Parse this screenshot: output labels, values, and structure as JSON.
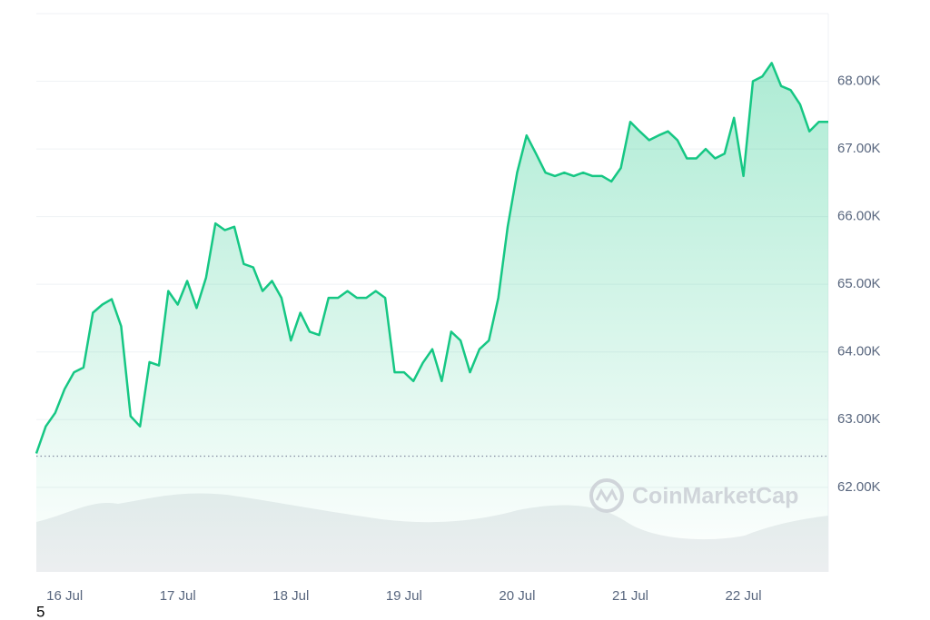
{
  "chart_data": {
    "type": "line",
    "categories": [
      null,
      null,
      null,
      "16 Jul",
      null,
      null,
      null,
      null,
      null,
      null,
      null,
      null,
      null,
      null,
      null,
      "17 Jul",
      null,
      null,
      null,
      null,
      null,
      null,
      null,
      null,
      null,
      null,
      null,
      "18 Jul",
      null,
      null,
      null,
      null,
      null,
      null,
      null,
      null,
      null,
      null,
      null,
      "19 Jul",
      null,
      null,
      null,
      null,
      null,
      null,
      null,
      null,
      null,
      null,
      null,
      "20 Jul",
      null,
      null,
      null,
      null,
      null,
      null,
      null,
      null,
      null,
      null,
      null,
      "21 Jul",
      null,
      null,
      null,
      null,
      null,
      null,
      null,
      null,
      null,
      null,
      null,
      "22 Jul",
      null,
      null,
      null,
      null,
      null,
      null,
      null,
      null,
      null
    ],
    "series": [
      {
        "color": "#16c784",
        "values": [
          62500,
          62900,
          63100,
          63450,
          63700,
          63770,
          64580,
          64700,
          64780,
          64380,
          63050,
          62900,
          63850,
          63800,
          64900,
          64700,
          65050,
          64650,
          65100,
          65900,
          65800,
          65850,
          65300,
          65250,
          64900,
          65050,
          64800,
          64170,
          64580,
          64300,
          64250,
          64800,
          64800,
          64900,
          64800,
          64800,
          64900,
          64800,
          63700,
          63700,
          63570,
          63840,
          64040,
          63570,
          64300,
          64170,
          63700,
          64040,
          64170,
          64800,
          65850,
          66650,
          67200,
          66930,
          66650,
          66600,
          66650,
          66600,
          66650,
          66600,
          66600,
          66520,
          66720,
          67400,
          67260,
          67130,
          67200,
          67260,
          67130,
          66860,
          66860,
          67000,
          66860,
          66930,
          67460,
          66600,
          68000,
          68070,
          68270,
          67930,
          67870,
          67660,
          67260,
          67400,
          67400
        ]
      }
    ],
    "baseline": 62460,
    "ylim": [
      60750,
      69000
    ],
    "yticks": [
      {
        "value": 62000,
        "label": "62.00K"
      },
      {
        "value": 63000,
        "label": "63.00K"
      },
      {
        "value": 64000,
        "label": "64.00K"
      },
      {
        "value": 65000,
        "label": "65.00K"
      },
      {
        "value": 66000,
        "label": "66.00K"
      },
      {
        "value": 67000,
        "label": "67.00K"
      },
      {
        "value": 68000,
        "label": "68.00K"
      }
    ],
    "grid": true,
    "watermark": "CoinMarketCap",
    "footnote": "5"
  }
}
